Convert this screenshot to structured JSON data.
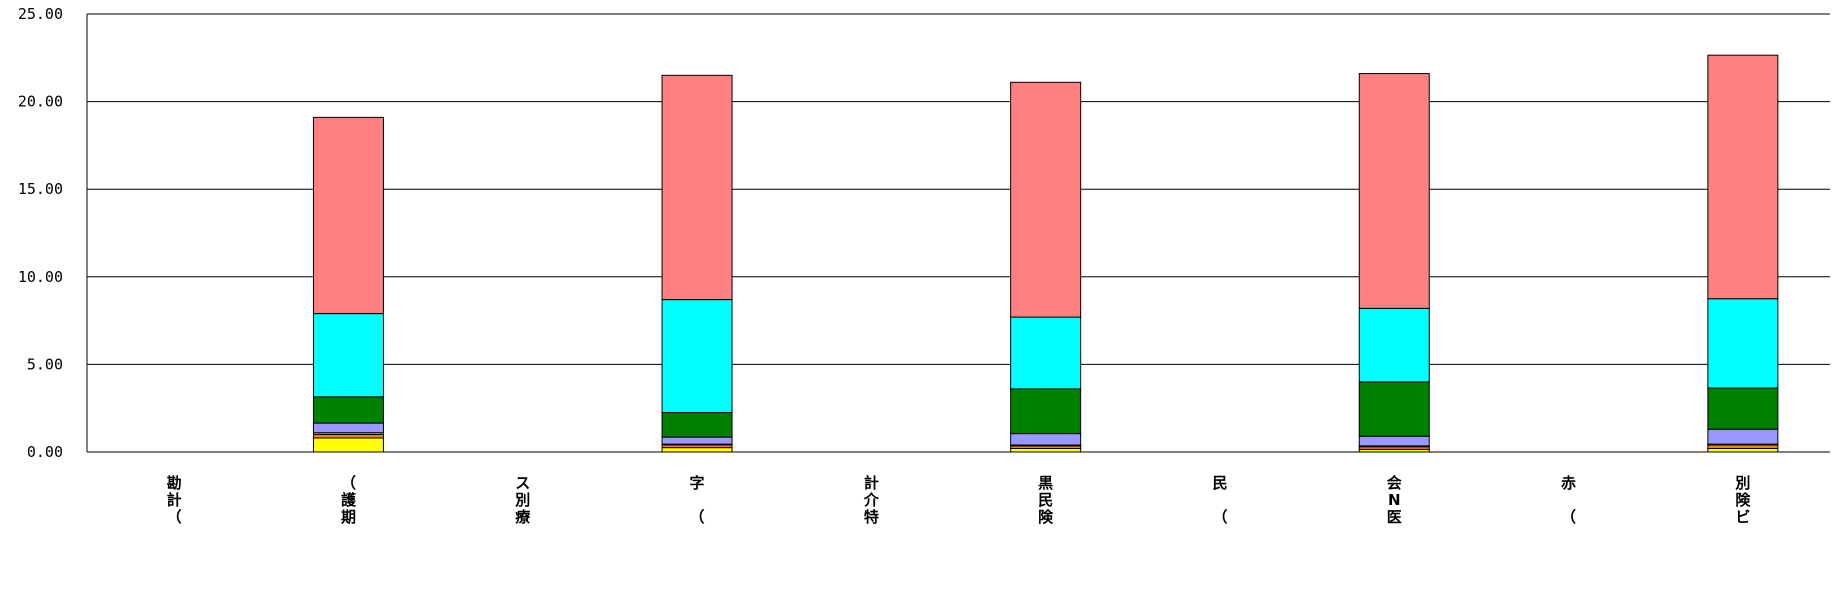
{
  "chart_data": {
    "type": "bar",
    "stacked": true,
    "grid": true,
    "ylim": [
      0,
      25
    ],
    "yticks": [
      "0.00",
      "5.00",
      "10.00",
      "15.00",
      "20.00",
      "25.00"
    ],
    "categories": [
      [
        "勘",
        "計",
        "（"
      ],
      [
        "（",
        "護",
        "期"
      ],
      [
        "ス",
        "別",
        "療"
      ],
      [
        "字",
        "",
        "（"
      ],
      [
        "計",
        "介",
        "特"
      ],
      [
        "黒",
        "民",
        "険"
      ],
      [
        "民",
        "",
        "（"
      ],
      [
        "会",
        "N",
        "医"
      ],
      [
        "赤",
        "",
        "（"
      ],
      [
        "別",
        "険",
        "ビ"
      ]
    ],
    "series": [
      {
        "color": "#ffff00",
        "values": [
          0,
          0.8,
          0,
          0.25,
          0,
          0.2,
          0,
          0.15,
          0,
          0.2
        ]
      },
      {
        "color": "#ff8000",
        "values": [
          0,
          0.2,
          0,
          0.15,
          0,
          0.15,
          0,
          0.15,
          0,
          0.2
        ]
      },
      {
        "color": "#ffb0c0",
        "values": [
          0,
          0.1,
          0,
          0.05,
          0,
          0.05,
          0,
          0.05,
          0,
          0.05
        ]
      },
      {
        "color": "#9999ff",
        "values": [
          0,
          0.55,
          0,
          0.4,
          0,
          0.65,
          0,
          0.55,
          0,
          0.85
        ]
      },
      {
        "color": "#008000",
        "values": [
          0,
          1.5,
          0,
          1.4,
          0,
          2.55,
          0,
          3.1,
          0,
          2.35
        ]
      },
      {
        "color": "#00ffff",
        "values": [
          0,
          4.75,
          0,
          6.45,
          0,
          4.1,
          0,
          4.2,
          0,
          5.1
        ]
      },
      {
        "color": "#ff8080",
        "values": [
          0,
          11.2,
          0,
          12.8,
          0,
          13.4,
          0,
          13.4,
          0,
          13.9
        ]
      }
    ]
  }
}
